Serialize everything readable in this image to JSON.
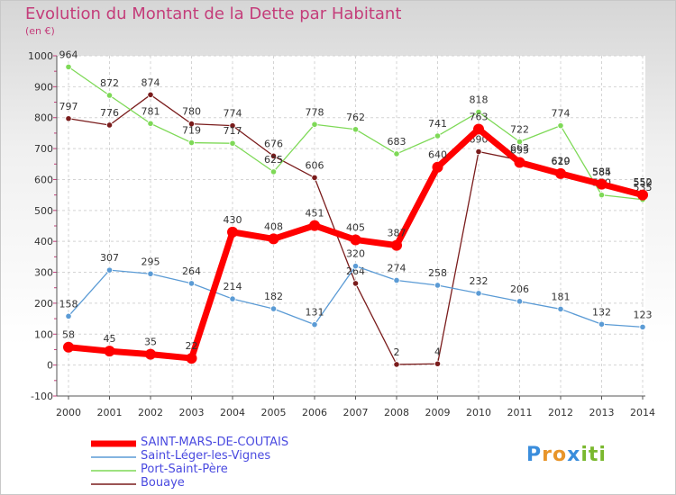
{
  "title": "Evolution du Montant de la Dette par Habitant",
  "unit": "(en €)",
  "logo": "Proxiti",
  "chart_data": {
    "type": "line",
    "title": "Evolution du Montant de la Dette par Habitant",
    "ylabel": "(en €)",
    "xlabel": "",
    "ylim": [
      -100,
      1000
    ],
    "yticks": [
      -100,
      0,
      100,
      200,
      300,
      400,
      500,
      600,
      700,
      800,
      900,
      1000
    ],
    "grid": true,
    "legend": "bottom",
    "categories": [
      "2000",
      "2001",
      "2002",
      "2003",
      "2004",
      "2005",
      "2006",
      "2007",
      "2008",
      "2009",
      "2010",
      "2011",
      "2012",
      "2013",
      "2014"
    ],
    "series": [
      {
        "name": "Bouaye",
        "color": "#7a1c1c",
        "width": 1.3,
        "values": [
          797,
          776,
          874,
          780,
          774,
          676,
          606,
          264,
          2,
          4,
          690,
          663,
          620,
          584,
          552
        ]
      },
      {
        "name": "Port-Saint-Père",
        "color": "#7ed957",
        "width": 1.3,
        "values": [
          964,
          872,
          781,
          719,
          717,
          625,
          778,
          762,
          683,
          741,
          818,
          722,
          774,
          550,
          535
        ]
      },
      {
        "name": "Saint-Léger-les-Vignes",
        "color": "#5b9bd5",
        "width": 1.3,
        "values": [
          158,
          307,
          295,
          264,
          214,
          182,
          131,
          320,
          274,
          258,
          232,
          206,
          181,
          132,
          123
        ]
      },
      {
        "name": "SAINT-MARS-DE-COUTAIS",
        "color": "#ff0000",
        "width": 7,
        "values": [
          58,
          45,
          35,
          22,
          430,
          408,
          451,
          405,
          387,
          640,
          763,
          655,
          619,
          585,
          550
        ]
      }
    ]
  }
}
